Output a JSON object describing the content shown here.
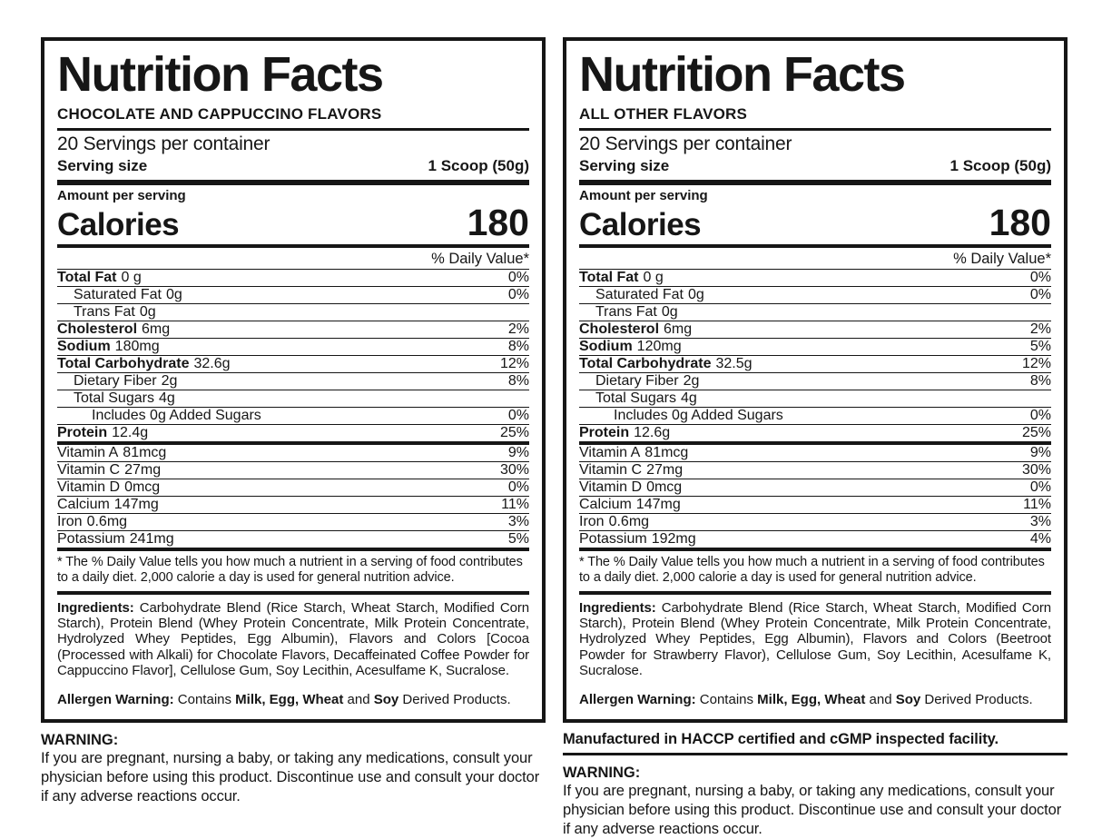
{
  "left": {
    "title": "Nutrition Facts",
    "flavor": "CHOCOLATE AND CAPPUCCINO FLAVORS",
    "servings": "20 Servings per container",
    "serving_size_label": "Serving size",
    "serving_size_value": "1 Scoop (50g)",
    "amount_per_serving": "Amount per serving",
    "calories_label": "Calories",
    "calories_value": "180",
    "daily_value_header": "% Daily Value*",
    "rows": [
      {
        "name": "Total Fat",
        "amount": "0 g",
        "dv": "0%",
        "bold": true
      },
      {
        "name": "Saturated Fat",
        "amount": "0g",
        "dv": "0%",
        "indent": 1
      },
      {
        "name": "Trans Fat",
        "amount": "0g",
        "dv": "",
        "indent": 1
      },
      {
        "name": "Cholesterol",
        "amount": "6mg",
        "dv": "2%",
        "bold": true
      },
      {
        "name": "Sodium",
        "amount": "180mg",
        "dv": "8%",
        "bold": true
      },
      {
        "name": "Total Carbohydrate",
        "amount": "32.6g",
        "dv": "12%",
        "bold": true
      },
      {
        "name": "Dietary Fiber",
        "amount": "2g",
        "dv": "8%",
        "indent": 1
      },
      {
        "name": "Total Sugars",
        "amount": "4g",
        "dv": "",
        "indent": 1
      },
      {
        "name": "Includes 0g Added Sugars",
        "amount": "",
        "dv": "0%",
        "indent": 2
      },
      {
        "name": "Protein",
        "amount": "12.4g",
        "dv": "25%",
        "bold": true,
        "thick": true
      },
      {
        "name": "Vitamin A",
        "amount": "81mcg",
        "dv": "9%"
      },
      {
        "name": "Vitamin C",
        "amount": "27mg",
        "dv": "30%"
      },
      {
        "name": "Vitamin D",
        "amount": "0mcg",
        "dv": "0%"
      },
      {
        "name": "Calcium",
        "amount": "147mg",
        "dv": "11%"
      },
      {
        "name": "Iron",
        "amount": "0.6mg",
        "dv": "3%"
      },
      {
        "name": "Potassium",
        "amount": "241mg",
        "dv": "5%",
        "thick": true
      }
    ],
    "footnote": "* The % Daily Value tells you how much a nutrient in a serving of food contributes to a daily diet. 2,000 calorie a day is used for general nutrition advice.",
    "ingredients_label": "Ingredients:",
    "ingredients_text": " Carbohydrate Blend (Rice Starch, Wheat Starch, Modified Corn Starch), Protein Blend (Whey Protein Concentrate, Milk Protein Concentrate, Hydrolyzed Whey Peptides, Egg Albumin), Flavors and Colors [Cocoa (Processed with Alkali) for Chocolate Flavors, Decaffeinated Coffee Powder for Cappuccino Flavor], Cellulose Gum, Soy Lecithin, Acesulfame K, Sucralose.",
    "allergen": {
      "label": "Allergen Warning:",
      "pre": " Contains ",
      "bold1": "Milk, Egg, Wheat",
      "mid": " and ",
      "bold2": "Soy",
      "post": " Derived Products."
    },
    "warning_title": "WARNING:",
    "warning_text": "If you are pregnant, nursing a baby, or taking any medications, consult your physician before using this product. Discontinue use and consult your doctor if any adverse reactions occur."
  },
  "right": {
    "title": "Nutrition Facts",
    "flavor": "ALL OTHER FLAVORS",
    "servings": "20 Servings per container",
    "serving_size_label": "Serving size",
    "serving_size_value": "1 Scoop (50g)",
    "amount_per_serving": "Amount per serving",
    "calories_label": "Calories",
    "calories_value": "180",
    "daily_value_header": "% Daily Value*",
    "rows": [
      {
        "name": "Total Fat",
        "amount": "0 g",
        "dv": "0%",
        "bold": true
      },
      {
        "name": "Saturated Fat",
        "amount": "0g",
        "dv": "0%",
        "indent": 1
      },
      {
        "name": "Trans Fat",
        "amount": "0g",
        "dv": "",
        "indent": 1
      },
      {
        "name": "Cholesterol",
        "amount": "6mg",
        "dv": "2%",
        "bold": true
      },
      {
        "name": "Sodium",
        "amount": "120mg",
        "dv": "5%",
        "bold": true
      },
      {
        "name": "Total Carbohydrate",
        "amount": "32.5g",
        "dv": "12%",
        "bold": true
      },
      {
        "name": "Dietary Fiber",
        "amount": "2g",
        "dv": "8%",
        "indent": 1
      },
      {
        "name": "Total Sugars",
        "amount": "4g",
        "dv": "",
        "indent": 1
      },
      {
        "name": "Includes 0g Added Sugars",
        "amount": "",
        "dv": "0%",
        "indent": 2
      },
      {
        "name": "Protein",
        "amount": "12.6g",
        "dv": "25%",
        "bold": true,
        "thick": true
      },
      {
        "name": "Vitamin A",
        "amount": "81mcg",
        "dv": "9%"
      },
      {
        "name": "Vitamin C",
        "amount": "27mg",
        "dv": "30%"
      },
      {
        "name": "Vitamin D",
        "amount": "0mcg",
        "dv": "0%"
      },
      {
        "name": "Calcium",
        "amount": "147mg",
        "dv": "11%"
      },
      {
        "name": "Iron",
        "amount": "0.6mg",
        "dv": "3%"
      },
      {
        "name": "Potassium",
        "amount": "192mg",
        "dv": "4%",
        "thick": true
      }
    ],
    "footnote": "* The % Daily Value tells you how much a nutrient in a serving of food contributes to a daily diet. 2,000 calorie a day is used for general nutrition advice.",
    "ingredients_label": "Ingredients:",
    "ingredients_text": " Carbohydrate Blend (Rice Starch, Wheat Starch, Modified Corn Starch), Protein Blend (Whey Protein Concentrate, Milk Protein Concentrate, Hydrolyzed Whey Peptides, Egg Albumin), Flavors and Colors (Beetroot Powder for Strawberry Flavor), Cellulose Gum, Soy Lecithin, Acesulfame K, Sucralose.",
    "allergen": {
      "label": "Allergen Warning:",
      "pre": " Contains ",
      "bold1": "Milk, Egg, Wheat",
      "mid": " and ",
      "bold2": "Soy",
      "post": " Derived Products."
    },
    "manufactured": "Manufactured in HACCP certified and cGMP inspected facility.",
    "warning_title": "WARNING:",
    "warning_text": "If you are pregnant, nursing a baby, or taking any medications, consult your physician before using this product. Discontinue use and consult your doctor if any adverse reactions occur."
  }
}
